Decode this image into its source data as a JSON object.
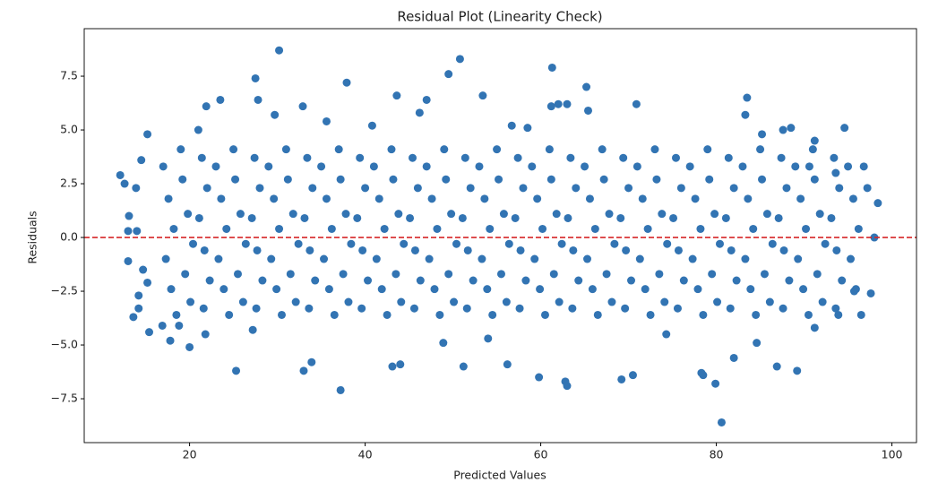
{
  "chart_data": {
    "type": "scatter",
    "title": "Residual Plot (Linearity Check)",
    "x_label": "Predicted Values",
    "y_label": "Residuals",
    "color": "#3274b3",
    "marker_radius": 4.5,
    "hline": {
      "value": 0,
      "color": "#d62728"
    },
    "xlim": [
      8,
      102.8
    ],
    "ylim": [
      -9.54,
      9.71
    ],
    "xticks": [
      20,
      40,
      60,
      80,
      100
    ],
    "yticks": [
      {
        "value": -7.5,
        "label": "−7.5"
      },
      {
        "value": -5,
        "label": "−5.0"
      },
      {
        "value": -2.5,
        "label": "−2.5"
      },
      {
        "value": 0,
        "label": "0.0"
      },
      {
        "value": 2.5,
        "label": "2.5"
      },
      {
        "value": 5,
        "label": "5.0"
      },
      {
        "value": 7.5,
        "label": "7.5"
      }
    ],
    "x": [
      17,
      17.6,
      18.2,
      17.3,
      17.9,
      18.5,
      23,
      23.6,
      24.2,
      23.3,
      23.9,
      24.5,
      29,
      29.6,
      30.2,
      29.3,
      29.9,
      30.5,
      35,
      35.6,
      36.2,
      35.3,
      35.9,
      36.5,
      41,
      41.6,
      42.2,
      41.3,
      41.9,
      42.5,
      47,
      47.6,
      48.2,
      47.3,
      47.9,
      48.5,
      53,
      53.6,
      54.2,
      53.3,
      53.9,
      54.5,
      59,
      59.6,
      60.2,
      59.3,
      59.9,
      60.5,
      65,
      65.6,
      66.2,
      65.3,
      65.9,
      66.5,
      71,
      71.6,
      72.2,
      71.3,
      71.9,
      72.5,
      77,
      77.6,
      78.2,
      77.3,
      77.9,
      78.5,
      83,
      83.6,
      84.2,
      83.3,
      83.9,
      84.5,
      89,
      89.6,
      90.2,
      89.3,
      89.9,
      90.5,
      95,
      95.6,
      96.2,
      95.3,
      95.9,
      96.5,
      19.2,
      19.8,
      20.4,
      19.5,
      20.1,
      19,
      25.2,
      25.8,
      26.4,
      25.5,
      26.1,
      25,
      31.2,
      31.8,
      32.4,
      31.5,
      32.1,
      31,
      37.2,
      37.8,
      38.4,
      37.5,
      38.1,
      37,
      43.2,
      43.8,
      44.4,
      43.5,
      44.1,
      43,
      49.2,
      49.8,
      50.4,
      49.5,
      50.1,
      49,
      55.2,
      55.8,
      56.4,
      55.5,
      56.1,
      55,
      61.2,
      61.8,
      62.4,
      61.5,
      62.1,
      61,
      67.2,
      67.8,
      68.4,
      67.5,
      68.1,
      67,
      73.2,
      73.8,
      74.4,
      73.5,
      74.1,
      73,
      79.2,
      79.8,
      80.4,
      79.5,
      80.1,
      79,
      85.2,
      85.8,
      86.4,
      85.5,
      86.1,
      85,
      91.2,
      91.8,
      92.4,
      91.5,
      92.1,
      91,
      21.4,
      22,
      21.1,
      21.7,
      22.3,
      21.6,
      27.4,
      28,
      27.1,
      27.7,
      28.3,
      27.6,
      33.4,
      34,
      33.1,
      33.7,
      34.3,
      33.6,
      39.4,
      40,
      39.1,
      39.7,
      40.3,
      39.6,
      45.4,
      46,
      45.1,
      45.7,
      46.3,
      45.6,
      51.4,
      52,
      51.1,
      51.7,
      52.3,
      51.6,
      57.4,
      58,
      57.1,
      57.7,
      58.3,
      57.6,
      63.4,
      64,
      63.1,
      63.7,
      64.3,
      63.6,
      69.4,
      70,
      69.1,
      69.7,
      70.3,
      69.6,
      75.4,
      76,
      75.1,
      75.7,
      76.3,
      75.6,
      81.4,
      82,
      81.1,
      81.7,
      82.3,
      81.6,
      87.4,
      88,
      87.1,
      87.7,
      88.3,
      87.6,
      93.4,
      94,
      93.1,
      93.7,
      94.3,
      93.6,
      30.2,
      27.5,
      37.9,
      49.5,
      50.8,
      61.3,
      65.2,
      23.5,
      21.9,
      27.8,
      43.6,
      47.0,
      53.4,
      70.9,
      83.5,
      61.2,
      62.0,
      63.0,
      65.4,
      83.3,
      32.9,
      94.6,
      29.7,
      21.0,
      15.2,
      12.1,
      12.6,
      13.9,
      14.5,
      13.1,
      13.0,
      14.0,
      13.0,
      14.7,
      15.2,
      14.2,
      14.2,
      13.6,
      15.4,
      17.8,
      20.0,
      25.3,
      33.9,
      33.0,
      37.2,
      43.1,
      44.0,
      51.2,
      56.2,
      59.8,
      62.8,
      63.0,
      69.2,
      70.5,
      78.3,
      78.5,
      79.9,
      80.6,
      86.9,
      89.2,
      91.2,
      93.9,
      95.7,
      97.6,
      98.0,
      98.4,
      97.2,
      96.8,
      93.6,
      91.2,
      88.5,
      87.6,
      85.2,
      46.2,
      58.5,
      56.7,
      35.6,
      40.8,
      90.6,
      84.6,
      82.0,
      21.8,
      18.8,
      16.9,
      27.2,
      48.9,
      54.0,
      74.3
    ],
    "values": [
      3.3,
      1.8,
      0.4,
      -1.0,
      -2.4,
      -3.6,
      3.3,
      1.8,
      0.4,
      -1.0,
      -2.4,
      -3.6,
      3.3,
      1.8,
      0.4,
      -1.0,
      -2.4,
      -3.6,
      3.3,
      1.8,
      0.4,
      -1.0,
      -2.4,
      -3.6,
      3.3,
      1.8,
      0.4,
      -1.0,
      -2.4,
      -3.6,
      3.3,
      1.8,
      0.4,
      -1.0,
      -2.4,
      -3.6,
      3.3,
      1.8,
      0.4,
      -1.0,
      -2.4,
      -3.6,
      3.3,
      1.8,
      0.4,
      -1.0,
      -2.4,
      -3.6,
      3.3,
      1.8,
      0.4,
      -1.0,
      -2.4,
      -3.6,
      3.3,
      1.8,
      0.4,
      -1.0,
      -2.4,
      -3.6,
      3.3,
      1.8,
      0.4,
      -1.0,
      -2.4,
      -3.6,
      3.3,
      1.8,
      0.4,
      -1.0,
      -2.4,
      -3.6,
      3.3,
      1.8,
      0.4,
      -1.0,
      -2.4,
      -3.6,
      3.3,
      1.8,
      0.4,
      -1.0,
      -2.4,
      -3.6,
      2.7,
      1.1,
      -0.3,
      -1.7,
      -3.0,
      4.1,
      2.7,
      1.1,
      -0.3,
      -1.7,
      -3.0,
      4.1,
      2.7,
      1.1,
      -0.3,
      -1.7,
      -3.0,
      4.1,
      2.7,
      1.1,
      -0.3,
      -1.7,
      -3.0,
      4.1,
      2.7,
      1.1,
      -0.3,
      -1.7,
      -3.0,
      4.1,
      2.7,
      1.1,
      -0.3,
      -1.7,
      -3.0,
      4.1,
      2.7,
      1.1,
      -0.3,
      -1.7,
      -3.0,
      4.1,
      2.7,
      1.1,
      -0.3,
      -1.7,
      -3.0,
      4.1,
      2.7,
      1.1,
      -0.3,
      -1.7,
      -3.0,
      4.1,
      2.7,
      1.1,
      -0.3,
      -1.7,
      -3.0,
      4.1,
      2.7,
      1.1,
      -0.3,
      -1.7,
      -3.0,
      4.1,
      2.7,
      1.1,
      -0.3,
      -1.7,
      -3.0,
      4.1,
      2.7,
      1.1,
      -0.3,
      -1.7,
      -3.0,
      4.1,
      3.7,
      2.3,
      0.9,
      -0.6,
      -2.0,
      -3.3,
      3.7,
      2.3,
      0.9,
      -0.6,
      -2.0,
      -3.3,
      3.7,
      2.3,
      0.9,
      -0.6,
      -2.0,
      -3.3,
      3.7,
      2.3,
      0.9,
      -0.6,
      -2.0,
      -3.3,
      3.7,
      2.3,
      0.9,
      -0.6,
      -2.0,
      -3.3,
      3.7,
      2.3,
      0.9,
      -0.6,
      -2.0,
      -3.3,
      3.7,
      2.3,
      0.9,
      -0.6,
      -2.0,
      -3.3,
      3.7,
      2.3,
      0.9,
      -0.6,
      -2.0,
      -3.3,
      3.7,
      2.3,
      0.9,
      -0.6,
      -2.0,
      -3.3,
      3.7,
      2.3,
      0.9,
      -0.6,
      -2.0,
      -3.3,
      3.7,
      2.3,
      0.9,
      -0.6,
      -2.0,
      -3.3,
      3.7,
      2.3,
      0.9,
      -0.6,
      -2.0,
      -3.3,
      3.7,
      2.3,
      0.9,
      -0.6,
      -2.0,
      -3.3,
      8.7,
      7.4,
      7.2,
      7.6,
      8.3,
      7.9,
      7.0,
      6.4,
      6.1,
      6.4,
      6.6,
      6.4,
      6.6,
      6.2,
      6.5,
      6.1,
      6.2,
      6.2,
      5.9,
      5.7,
      6.1,
      5.1,
      5.7,
      5.0,
      4.8,
      2.9,
      2.5,
      2.3,
      3.6,
      1.0,
      0.3,
      0.3,
      -1.1,
      -1.5,
      -2.1,
      -2.7,
      -3.3,
      -3.7,
      -4.4,
      -4.8,
      -5.1,
      -6.2,
      -5.8,
      -6.2,
      -7.1,
      -6.0,
      -5.9,
      -6.0,
      -5.9,
      -6.5,
      -6.7,
      -6.9,
      -6.6,
      -6.4,
      -6.3,
      -6.4,
      -6.8,
      -8.6,
      -6.0,
      -6.2,
      -4.2,
      -3.6,
      -2.5,
      -2.6,
      0.0,
      1.6,
      2.3,
      3.3,
      3.0,
      4.5,
      5.1,
      5.0,
      4.8,
      5.8,
      5.1,
      5.2,
      5.4,
      5.2,
      3.3,
      -4.9,
      -5.6,
      -4.5,
      -4.1,
      -4.1,
      -4.3,
      -4.9,
      -4.7,
      -4.5
    ]
  }
}
